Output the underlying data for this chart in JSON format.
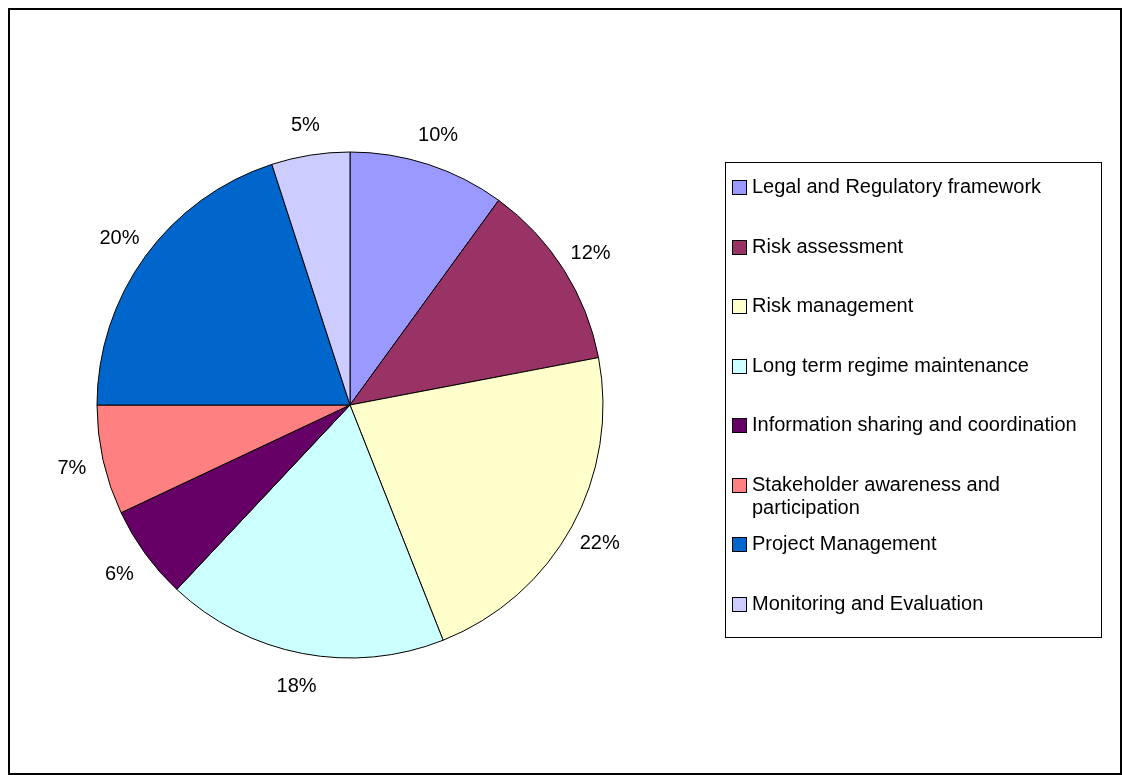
{
  "chart_data": {
    "type": "pie",
    "categories": [
      "Legal and Regulatory framework",
      "Risk assessment",
      "Risk management",
      "Long term regime maintenance",
      "Information sharing and coordination",
      "Stakeholder awareness and participation",
      "Project Management",
      "Monitoring and Evaluation"
    ],
    "values": [
      10,
      12,
      22,
      18,
      6,
      7,
      20,
      5
    ],
    "colors": [
      "#9999ff",
      "#993366",
      "#ffffcc",
      "#ccffff",
      "#660066",
      "#ff8080",
      "#0066cc",
      "#ccccff"
    ],
    "value_labels": [
      "10%",
      "12%",
      "22%",
      "18%",
      "6%",
      "7%",
      "20%",
      "5%"
    ],
    "legend": "right"
  }
}
